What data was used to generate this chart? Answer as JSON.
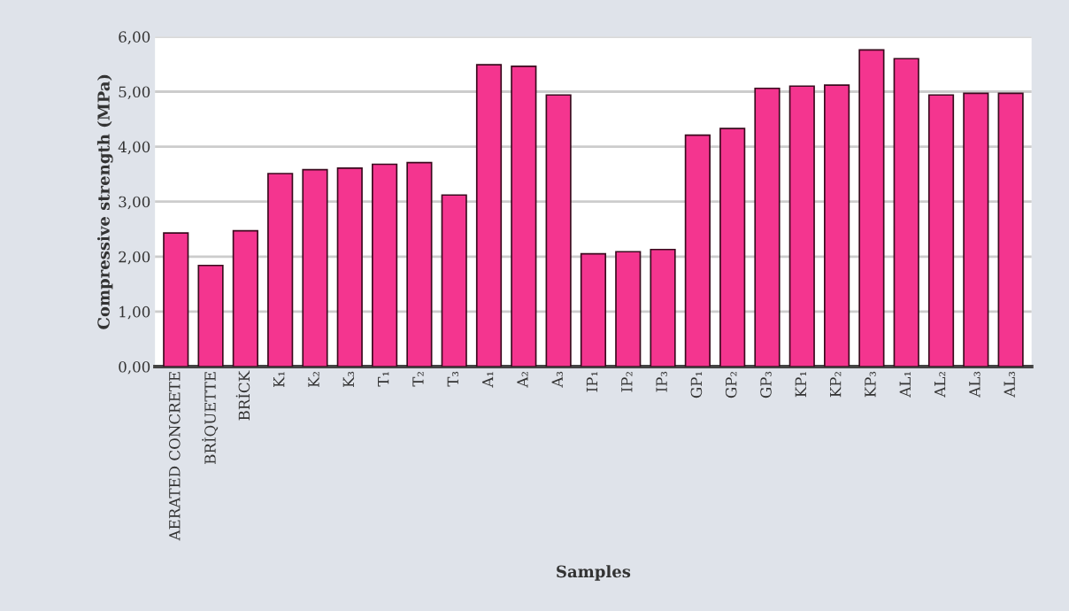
{
  "chart_data": {
    "type": "bar",
    "xlabel": "Samples",
    "ylabel": "Compressive strength (MPa)",
    "categories": [
      "AERATED CONCRETE",
      "BRİQUETTE",
      "BRİCK",
      "K₁",
      "K₂",
      "K₃",
      "T₁",
      "T₂",
      "T₃",
      "A₁",
      "A₂",
      "A₃",
      "IP₁",
      "IP₂",
      "IP₃",
      "GP₁",
      "GP₂",
      "GP₃",
      "KP₁",
      "KP₂",
      "KP₃",
      "AL₁",
      "AL₂",
      "AL₃",
      "AL₃"
    ],
    "values": [
      2.43,
      1.84,
      2.47,
      3.51,
      3.58,
      3.61,
      3.68,
      3.71,
      3.12,
      5.49,
      5.46,
      4.94,
      2.05,
      2.09,
      2.13,
      4.21,
      4.33,
      5.06,
      5.1,
      5.12,
      5.76,
      5.6,
      4.94,
      4.97,
      4.97
    ],
    "color": "#f4358f",
    "ylim": [
      0,
      6
    ],
    "yticks": [
      {
        "value": 0,
        "label": "0,00"
      },
      {
        "value": 1,
        "label": "1,00"
      },
      {
        "value": 2,
        "label": "2,00"
      },
      {
        "value": 3,
        "label": "3,00"
      },
      {
        "value": 4,
        "label": "4,00"
      },
      {
        "value": 5,
        "label": "5,00"
      },
      {
        "value": 6,
        "label": "6,00"
      }
    ],
    "grid": "y"
  }
}
